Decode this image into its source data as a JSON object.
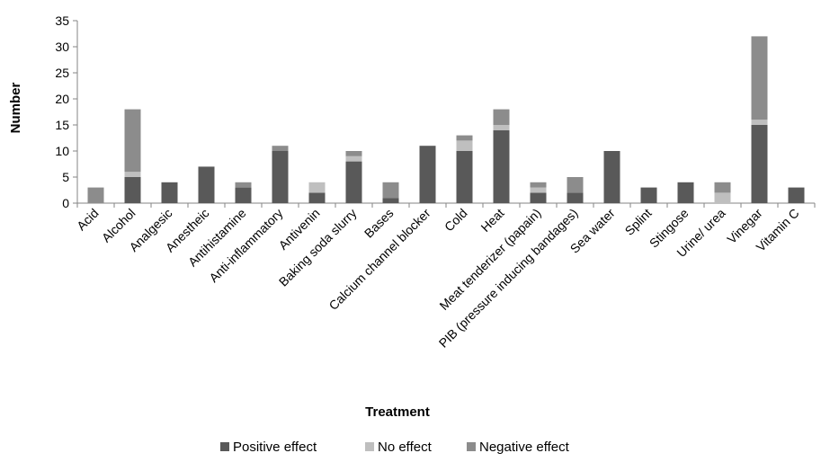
{
  "chart_data": {
    "type": "bar",
    "stacked": true,
    "title": "",
    "xlabel": "Treatment",
    "ylabel": "Number",
    "ylim": [
      0,
      35
    ],
    "yticks": [
      0,
      5,
      10,
      15,
      20,
      25,
      30,
      35
    ],
    "grid": false,
    "legend_position": "bottom",
    "categories": [
      "Acid",
      "Alcohol",
      "Analgesic",
      "Anestheic",
      "Antihistamine",
      "Anti-inflammatory",
      "Antivenin",
      "Baking soda slurry",
      "Bases",
      "Calcium channel blocker",
      "Cold",
      "Heat",
      "Meat tenderizer (papain)",
      "PIB (pressure inducing bandages)",
      "Sea water",
      "Splint",
      "Stingose",
      "Urine/ urea",
      "Vinegar",
      "Vitamin C"
    ],
    "series": [
      {
        "name": "Positive effect",
        "color": "#595959",
        "values": [
          0,
          5,
          4,
          7,
          3,
          10,
          2,
          8,
          1,
          11,
          10,
          14,
          2,
          2,
          10,
          3,
          4,
          0,
          15,
          3
        ]
      },
      {
        "name": "No effect",
        "color": "#bfbfbf",
        "values": [
          0,
          1,
          0,
          0,
          0,
          0,
          2,
          1,
          0,
          0,
          2,
          1,
          1,
          0,
          0,
          0,
          0,
          2,
          1,
          0
        ]
      },
      {
        "name": "Negative effect",
        "color": "#8c8c8c",
        "values": [
          3,
          12,
          0,
          0,
          1,
          1,
          0,
          1,
          3,
          0,
          1,
          3,
          1,
          3,
          0,
          0,
          0,
          2,
          16,
          0
        ]
      }
    ]
  }
}
